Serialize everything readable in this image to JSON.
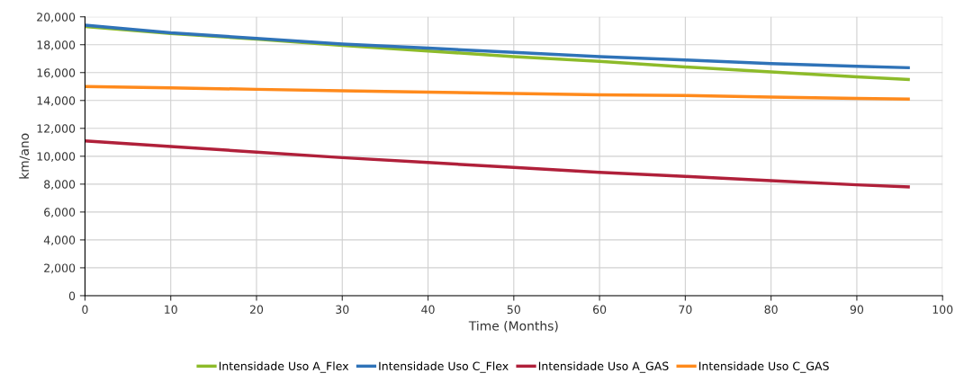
{
  "chart_data": {
    "type": "line",
    "xlabel": "Time (Months)",
    "ylabel": "km/ano",
    "x": [
      0,
      10,
      20,
      30,
      40,
      50,
      60,
      70,
      80,
      90,
      96
    ],
    "series": [
      {
        "name": "Intensidade Uso A_Flex",
        "color": "#8dbb2a",
        "values": [
          19300,
          18800,
          18400,
          17950,
          17550,
          17150,
          16800,
          16400,
          16050,
          15700,
          15500
        ]
      },
      {
        "name": "Intensidade Uso C_Flex",
        "color": "#2f73b8",
        "values": [
          19400,
          18850,
          18450,
          18050,
          17750,
          17450,
          17150,
          16900,
          16650,
          16450,
          16350
        ]
      },
      {
        "name": "Intensidade Uso A_GAS",
        "color": "#b0203a",
        "values": [
          11100,
          10700,
          10300,
          9900,
          9550,
          9200,
          8850,
          8550,
          8250,
          7950,
          7800
        ]
      },
      {
        "name": "Intensidade Uso C_GAS",
        "color": "#ff8a1c",
        "values": [
          15000,
          14900,
          14800,
          14700,
          14600,
          14500,
          14400,
          14350,
          14250,
          14150,
          14100
        ]
      }
    ],
    "xlim": [
      0,
      100
    ],
    "xticks": [
      0,
      10,
      20,
      30,
      40,
      50,
      60,
      70,
      80,
      90,
      100
    ],
    "ylim": [
      0,
      20000
    ],
    "yticks": [
      0,
      {
        "value": 2000,
        "label": "2,000"
      },
      {
        "value": 4000,
        "label": "4,000"
      },
      {
        "value": 6000,
        "label": "6,000"
      },
      {
        "value": 8000,
        "label": "8,000"
      },
      {
        "value": 10000,
        "label": "10,000"
      },
      {
        "value": 12000,
        "label": "12,000"
      },
      {
        "value": 14000,
        "label": "14,000"
      },
      {
        "value": 16000,
        "label": "16,000"
      },
      {
        "value": 18000,
        "label": "18,000"
      },
      {
        "value": 20000,
        "label": "20,000"
      }
    ],
    "grid": true,
    "legend": "bottom",
    "marker": "none",
    "line_style": "solid"
  }
}
